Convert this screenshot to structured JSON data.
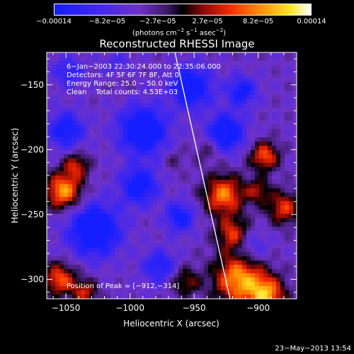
{
  "chart_data": {
    "type": "heatmap",
    "title": "Reconstructed RHESSI Image",
    "xlabel": "Heliocentric X (arcsec)",
    "ylabel": "Heliocentric Y (arcsec)",
    "xlim": [
      -1065,
      -870
    ],
    "ylim": [
      -315,
      -125
    ],
    "x_ticks": [
      -1050,
      -1000,
      -950,
      -900
    ],
    "x_tick_labels": [
      "−1050",
      "−1000",
      "−950",
      "−900"
    ],
    "y_ticks": [
      -300,
      -250,
      -200,
      -150
    ],
    "y_tick_labels": [
      "−300",
      "−250",
      "−200",
      "−150"
    ],
    "colorbar": {
      "range": [
        -0.00014,
        0.00014
      ],
      "tick_values": [
        -0.00014,
        -8.2e-05,
        -2.7e-05,
        2.7e-05,
        8.2e-05,
        0.00014
      ],
      "tick_labels": [
        "−0.00014",
        "−8.2e−05",
        "−2.7e−05",
        "2.7e−05",
        "8.2e−05",
        "0.00014"
      ],
      "units_base": "(photons cm",
      "units_exp1": "−2",
      "units_mid": " s",
      "units_exp2": "−1",
      "units_mid2": " asec",
      "units_exp3": "−2",
      "units_end": ")"
    },
    "annotations": [
      "6−Jan−2003 22:30:24.000 to 22:35:06.000",
      "Detectors: 4F 5F 6F 7F 8F, Att 0",
      "Energy Range: 25.0 − 50.0 keV",
      "Clean    Total counts: 4.53E+03"
    ],
    "peak_label": "Position of Peak = [−912,−314]",
    "limb_line": {
      "x": [
        -965,
        -922
      ],
      "y": [
        -125,
        -315
      ]
    },
    "blobs": [
      {
        "x": -990,
        "y": -185,
        "v": -1.0,
        "r": 13
      },
      {
        "x": -1028,
        "y": -262,
        "v": -1.0,
        "r": 14
      },
      {
        "x": -952,
        "y": -152,
        "v": -0.9,
        "r": 11
      },
      {
        "x": -993,
        "y": -228,
        "v": -0.8,
        "r": 10
      },
      {
        "x": -925,
        "y": -187,
        "v": -0.9,
        "r": 10
      },
      {
        "x": -913,
        "y": -155,
        "v": -0.7,
        "r": 8
      },
      {
        "x": -1050,
        "y": -185,
        "v": -0.7,
        "r": 10
      },
      {
        "x": -977,
        "y": -290,
        "v": -0.6,
        "r": 9
      },
      {
        "x": -961,
        "y": -252,
        "v": -0.7,
        "r": 8
      },
      {
        "x": -905,
        "y": -275,
        "v": -0.4,
        "r": 9
      },
      {
        "x": -1048,
        "y": -140,
        "v": -0.5,
        "r": 8
      },
      {
        "x": -1052,
        "y": -232,
        "v": 1.0,
        "r": 10
      },
      {
        "x": -1042,
        "y": -212,
        "v": 0.6,
        "r": 7
      },
      {
        "x": -1055,
        "y": -300,
        "v": 0.8,
        "r": 9
      },
      {
        "x": -1035,
        "y": -310,
        "v": 0.6,
        "r": 7
      },
      {
        "x": -915,
        "y": -300,
        "v": 1.0,
        "r": 14
      },
      {
        "x": -893,
        "y": -312,
        "v": 0.9,
        "r": 10
      },
      {
        "x": -927,
        "y": -235,
        "v": 0.9,
        "r": 11
      },
      {
        "x": -920,
        "y": -265,
        "v": 0.7,
        "r": 9
      },
      {
        "x": -895,
        "y": -205,
        "v": 0.8,
        "r": 8
      },
      {
        "x": -880,
        "y": -245,
        "v": 0.7,
        "r": 9
      },
      {
        "x": -900,
        "y": -232,
        "v": 0.5,
        "r": 7
      },
      {
        "x": -957,
        "y": -302,
        "v": 0.5,
        "r": 8
      },
      {
        "x": -940,
        "y": -200,
        "v": 0.3,
        "r": 7
      },
      {
        "x": -965,
        "y": -208,
        "v": 0.2,
        "r": 6
      },
      {
        "x": -1008,
        "y": -148,
        "v": 0.2,
        "r": 6
      },
      {
        "x": -1010,
        "y": -135,
        "v": -0.3,
        "r": 8
      }
    ]
  },
  "footer": "23−May−2013 13:54"
}
